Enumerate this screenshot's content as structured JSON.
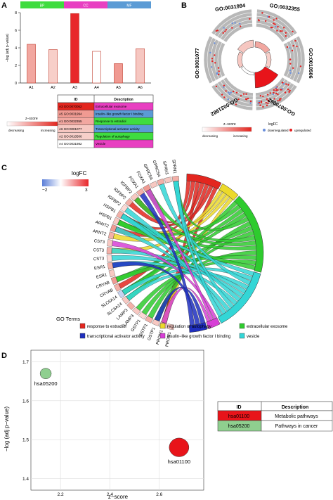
{
  "panels": {
    "a": "A",
    "b": "B",
    "c": "C",
    "d": "D"
  },
  "colors": {
    "bp": "#3fdc3f",
    "cc": "#e83fc1",
    "mf": "#5b9bd5",
    "up": "#e51f1f",
    "down": "#6a8fdc",
    "exosome": "#2ecb2e",
    "estradiol": "#e3261f",
    "autophagy": "#ecd92a",
    "transcriptional": "#1f2fbf",
    "insulin": "#d73fd6",
    "vesicle": "#33d6d6",
    "hsa01100": "#e8141a",
    "hsa05200": "#8fcf8f"
  },
  "panel_a": {
    "categories_bar": [
      "BP",
      "CC",
      "MF"
    ],
    "ylabel": "−log (adj p−value)",
    "zscore_label": "z−score",
    "zscore_decreasing": "decreasing",
    "zscore_increasing": "increasing",
    "table_headers": [
      "ID",
      "Description"
    ],
    "table_rows": [
      {
        "id": "A3 GO:0070062",
        "desc": "Extracellular exosome"
      },
      {
        "id": "A5 GO:0031994",
        "desc": "Insulin−like growth factor I binding"
      },
      {
        "id": "A1 GO:0032355",
        "desc": "Response to estradiol"
      },
      {
        "id": "A6 GO:0001077",
        "desc": "Transcriptional activator activity"
      },
      {
        "id": "A2 GO:0010506",
        "desc": "Regulation of autophagy"
      },
      {
        "id": "A4 GO:0031982",
        "desc": "Vesicle"
      }
    ]
  },
  "panel_b": {
    "go_labels": [
      "GO:0031994",
      "GO:0032355",
      "GO:0010506",
      "GO:0070062",
      "GO:0031982",
      "GO:0001077"
    ],
    "zscore_label": "z−score",
    "logfc_label": "logFC",
    "decreasing": "decreasing",
    "increasing": "increasing",
    "downregulated": "downregulated",
    "upregulated": "upregulated"
  },
  "panel_c": {
    "logfc_title": "logFC",
    "logfc_ticks": [
      "−2",
      "3"
    ],
    "genes": [
      "SPRN1",
      "SPRN1",
      "GPRC5A",
      "GPRC5A",
      "FOXA1",
      "FOXA1",
      "IGFBP2",
      "IGFBP2",
      "IGFBP2",
      "HSPB1",
      "HSPB1",
      "ARNT2",
      "ARNT2",
      "CST3",
      "CST3",
      "CST3",
      "ESR1",
      "ESR1",
      "CRYAB",
      "CRYAB",
      "SLC6A14",
      "SLC6A14",
      "LAMP3",
      "LAMP3",
      "GSTP1",
      "GSTP1",
      "GSTP1",
      "PROM1",
      "PROM1"
    ],
    "go_terms_title": "GO Terms",
    "legend": [
      {
        "key": "estradiol",
        "label": "response to estradiol"
      },
      {
        "key": "autophagy",
        "label": "regulation of autophagy"
      },
      {
        "key": "exosome",
        "label": "extracellular exosome"
      },
      {
        "key": "transcriptional",
        "label": "transcriptional activator activity"
      },
      {
        "key": "insulin",
        "label": "insulin−like growth factor I binding"
      },
      {
        "key": "vesicle",
        "label": "vesicle"
      }
    ]
  },
  "chart_data": [
    {
      "type": "bar",
      "panel": "A",
      "categories": [
        "A1",
        "A2",
        "A3",
        "A4",
        "A5",
        "A6"
      ],
      "values": [
        4.4,
        3.8,
        7.9,
        3.6,
        2.2,
        3.9
      ],
      "ylabel": "−log (adj p−value)",
      "ylim": [
        0,
        8
      ],
      "yticks": [
        0,
        2,
        4,
        6,
        8
      ],
      "fill_colors": [
        "#f2a7a0",
        "#f7cfc9",
        "#e8282a",
        "#ffffff",
        "#f09a92",
        "#f6c7c1"
      ]
    },
    {
      "type": "scatter",
      "panel": "D",
      "points": [
        {
          "x": 2.14,
          "y": 1.67,
          "label": "hsa05200",
          "color": "#8fcf8f"
        },
        {
          "x": 2.68,
          "y": 1.48,
          "label": "hsa01100",
          "color": "#e8141a"
        }
      ],
      "xlabel": "z−score",
      "ylabel": "−log (adj p−value)",
      "xticks": [
        2.2,
        2.4,
        2.6
      ],
      "yticks": [
        1.4,
        1.5,
        1.6,
        1.7
      ],
      "xlim": [
        2.08,
        2.78
      ],
      "ylim": [
        1.37,
        1.73
      ],
      "table_headers": [
        "ID",
        "Description"
      ],
      "table_rows": [
        {
          "id": "hsa01100",
          "desc": "Metabolic pathways"
        },
        {
          "id": "hsa05200",
          "desc": "Pathways in cancer"
        }
      ]
    }
  ]
}
